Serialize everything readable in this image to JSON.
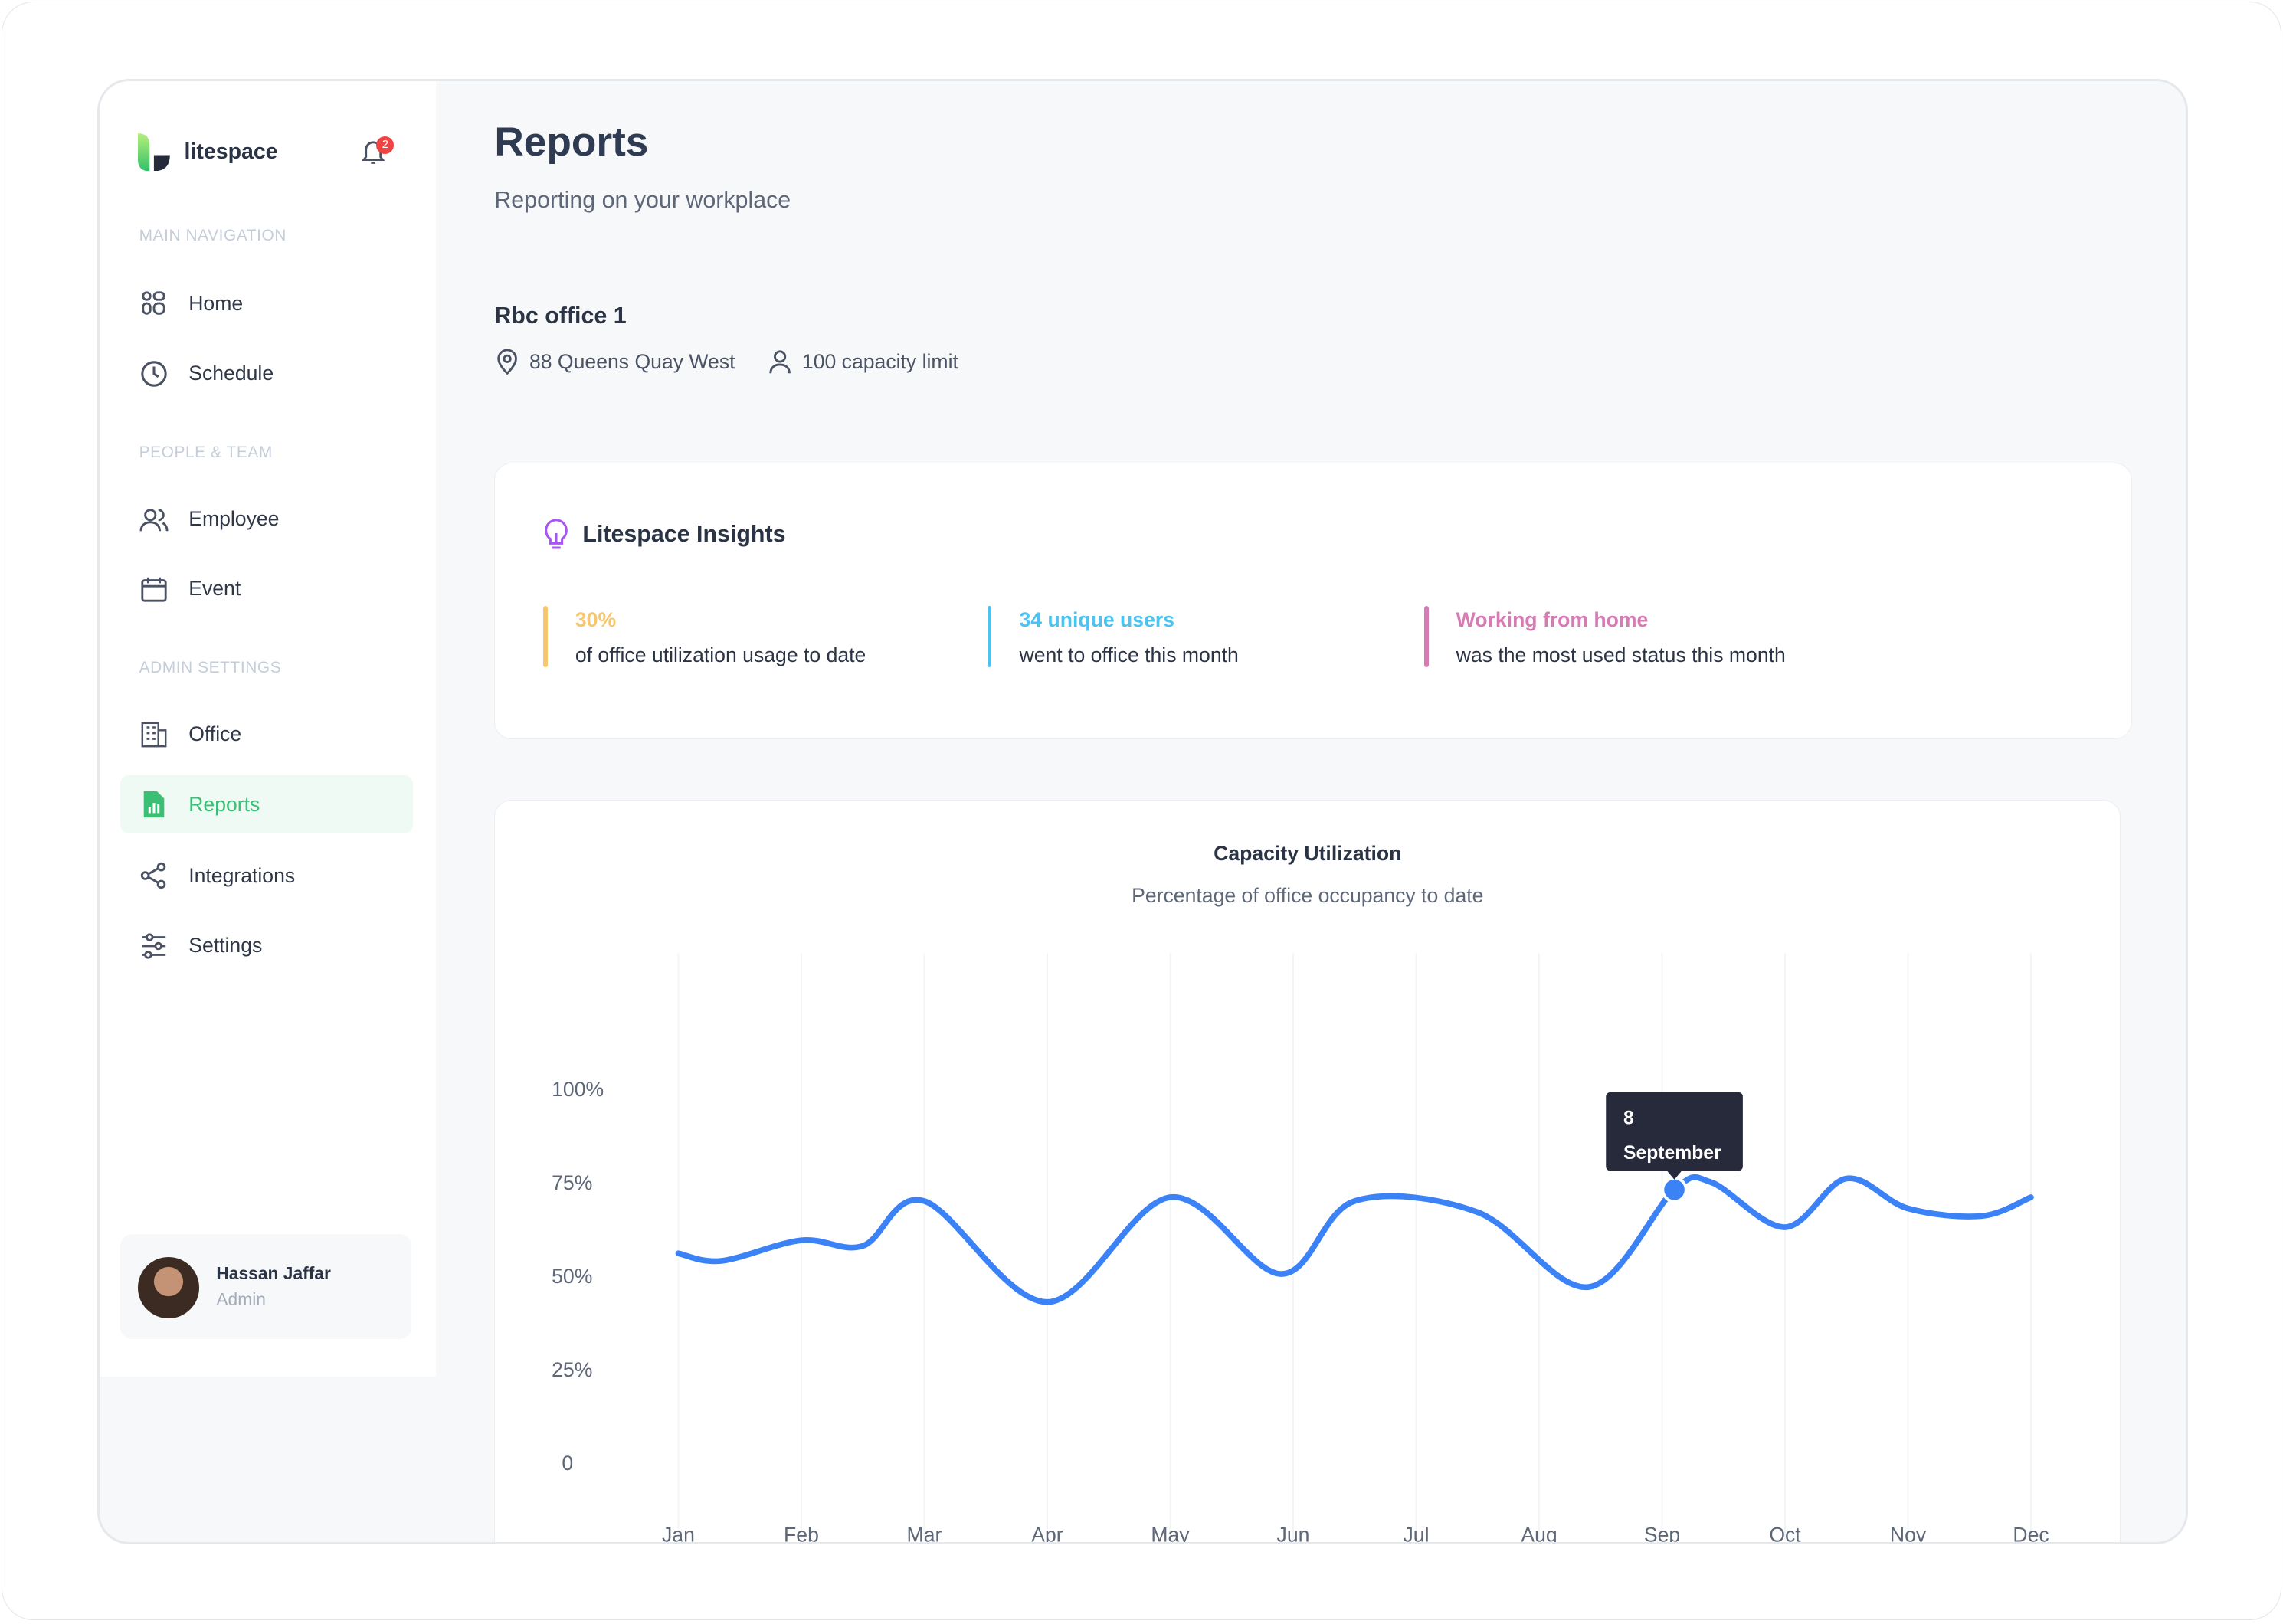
{
  "brand": {
    "name": "litespace",
    "notifications": "2"
  },
  "sidebar": {
    "sections": [
      "MAIN NAVIGATION",
      "PEOPLE & TEAM",
      "ADMIN SETTINGS"
    ],
    "items": [
      {
        "label": "Home",
        "icon": "grid-icon"
      },
      {
        "label": "Schedule",
        "icon": "clock-icon"
      },
      {
        "label": "Employee",
        "icon": "users-icon"
      },
      {
        "label": "Event",
        "icon": "calendar-icon"
      },
      {
        "label": "Office",
        "icon": "building-icon"
      },
      {
        "label": "Reports",
        "icon": "report-icon",
        "active": true
      },
      {
        "label": "Integrations",
        "icon": "share-icon"
      },
      {
        "label": "Settings",
        "icon": "sliders-icon"
      }
    ],
    "user": {
      "name": "Hassan Jaffar",
      "role": "Admin"
    }
  },
  "header": {
    "title": "Reports",
    "subtitle": "Reporting on your workplace"
  },
  "office": {
    "name": "Rbc office 1",
    "address": "88 Queens Quay West",
    "capacity": "100 capacity limit"
  },
  "insights": {
    "title": "Litespace Insights",
    "items": [
      {
        "highlight": "30%",
        "text": "of office utilization usage to date",
        "color": "#f8c66b"
      },
      {
        "highlight": "34 unique users",
        "text": "went to office this month",
        "color": "#4cc3f0"
      },
      {
        "highlight": "Working from home",
        "text": "was the most used status this month",
        "color": "#d77bb5"
      }
    ]
  },
  "chart_data": {
    "type": "line",
    "title": "Capacity Utilization",
    "subtitle": "Percentage of office occupancy to date",
    "categories": [
      "Jan",
      "Feb",
      "Mar",
      "Apr",
      "May",
      "Jun",
      "Jul",
      "Aug",
      "Sep",
      "Oct",
      "Nov",
      "Dec"
    ],
    "yticks": [
      "0",
      "25%",
      "50%",
      "75%",
      "100%"
    ],
    "ylim": [
      0,
      100
    ],
    "points": [
      [
        0,
        56
      ],
      [
        0.35,
        54
      ],
      [
        1,
        59.5
      ],
      [
        1.5,
        58
      ],
      [
        2,
        70
      ],
      [
        3,
        43
      ],
      [
        4,
        71
      ],
      [
        4.9,
        50.5
      ],
      [
        5.5,
        70
      ],
      [
        6.5,
        67
      ],
      [
        7.4,
        47
      ],
      [
        8.1,
        73
      ],
      [
        8.4,
        75
      ],
      [
        9,
        63
      ],
      [
        9.5,
        76
      ],
      [
        10,
        68
      ],
      [
        10.6,
        66
      ],
      [
        11,
        71
      ]
    ],
    "tooltip": {
      "value": "8",
      "label": "September",
      "x": 8.1,
      "y": 73
    },
    "color": "#3b82f6"
  }
}
